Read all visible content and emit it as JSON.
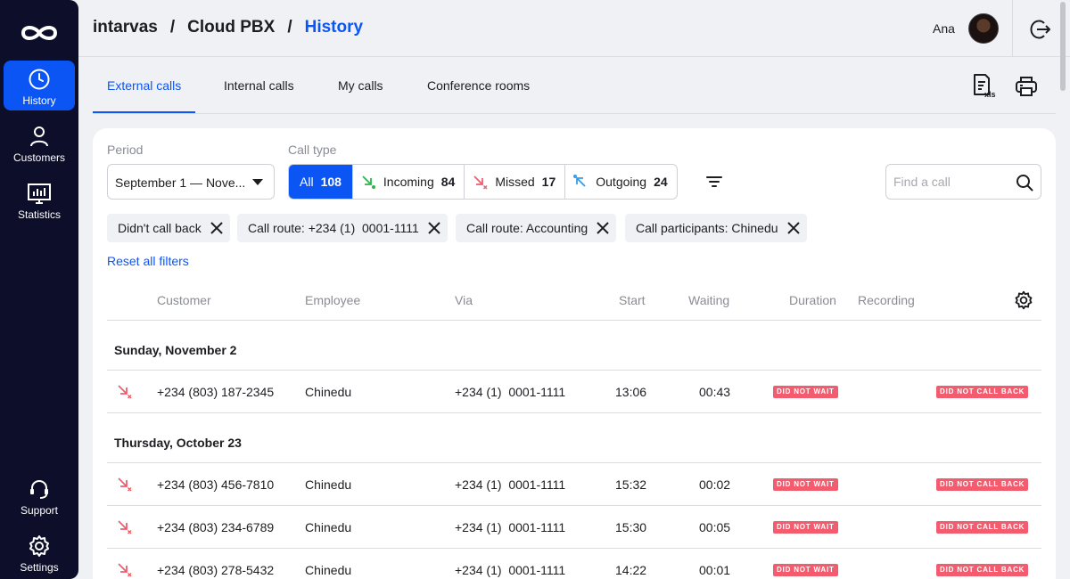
{
  "sidebar": {
    "items": [
      {
        "label": "History",
        "icon": "clock-icon"
      },
      {
        "label": "Customers",
        "icon": "person-icon"
      },
      {
        "label": "Statistics",
        "icon": "chart-icon"
      },
      {
        "label": "Support",
        "icon": "headset-icon"
      },
      {
        "label": "Settings",
        "icon": "gear-icon"
      }
    ]
  },
  "header": {
    "breadcrumb": [
      "intarvas",
      "Cloud PBX",
      "History"
    ],
    "separator": "/",
    "user_name": "Ana"
  },
  "tabs": [
    "External calls",
    "Internal calls",
    "My calls",
    "Conference rooms"
  ],
  "filters": {
    "period_label": "Period",
    "period_value": "September 1 — Nove...",
    "call_type_label": "Call type",
    "call_types": [
      {
        "label": "All",
        "count": "108"
      },
      {
        "label": "Incoming",
        "count": "84"
      },
      {
        "label": "Missed",
        "count": "17"
      },
      {
        "label": "Outgoing",
        "count": "24"
      }
    ],
    "search_placeholder": "Find a call",
    "chips": [
      "Didn't call back",
      "Call route: +234 (1)  0001-1111",
      "Call route: Accounting",
      "Call participants: Chinedu"
    ],
    "reset_label": "Reset all filters"
  },
  "table": {
    "columns": [
      "Customer",
      "Employee",
      "Via",
      "Start",
      "Waiting",
      "Duration",
      "Recording"
    ],
    "groups": [
      {
        "date": "Sunday, November 2",
        "rows": [
          {
            "customer": "+234 (803) 187-2345",
            "employee": "Chinedu",
            "via": "+234 (1)  0001-1111",
            "start": "13:06",
            "waiting": "00:43",
            "duration_badge": "DID NOT WAIT",
            "recording_badge": "DID NOT CALL BACK"
          }
        ]
      },
      {
        "date": "Thursday, October 23",
        "rows": [
          {
            "customer": "+234 (803) 456-7810",
            "employee": "Chinedu",
            "via": "+234 (1)  0001-1111",
            "start": "15:32",
            "waiting": "00:02",
            "duration_badge": "DID NOT WAIT",
            "recording_badge": "DID NOT CALL BACK"
          },
          {
            "customer": "+234 (803) 234-6789",
            "employee": "Chinedu",
            "via": "+234 (1)  0001-1111",
            "start": "15:30",
            "waiting": "00:05",
            "duration_badge": "DID NOT WAIT",
            "recording_badge": "DID NOT CALL BACK"
          },
          {
            "customer": "+234 (803) 278-5432",
            "employee": "Chinedu",
            "via": "+234 (1)  0001-1111",
            "start": "14:22",
            "waiting": "00:01",
            "duration_badge": "DID NOT WAIT",
            "recording_badge": "DID NOT CALL BACK"
          }
        ]
      }
    ]
  },
  "colors": {
    "accent": "#0c55f5",
    "sidebar": "#0d0f2a",
    "missed": "#f25c6e",
    "incoming": "#2bb64a",
    "outgoing": "#3a9be6"
  }
}
